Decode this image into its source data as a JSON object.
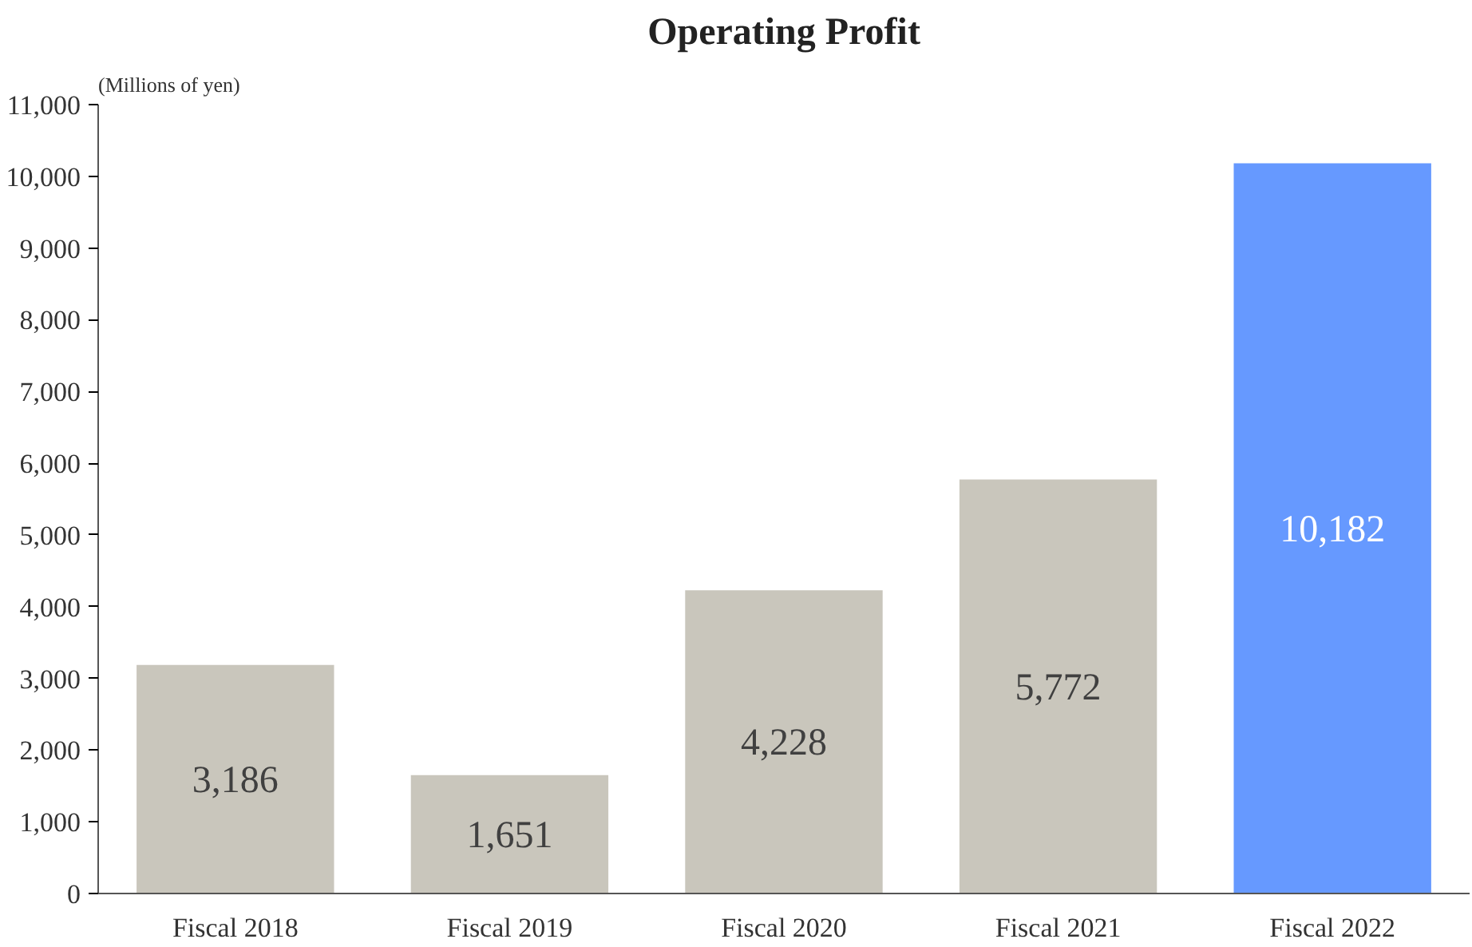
{
  "chart_data": {
    "type": "bar",
    "title": "Operating Profit",
    "ylabel": "(Millions of yen)",
    "categories": [
      "Fiscal 2018",
      "Fiscal 2019",
      "Fiscal 2020",
      "Fiscal 2021",
      "Fiscal 2022"
    ],
    "values": [
      3186,
      1651,
      4228,
      5772,
      10182
    ],
    "colors": [
      "#c9c6bc",
      "#c9c6bc",
      "#c9c6bc",
      "#c9c6bc",
      "#6699ff"
    ],
    "ylim": [
      0,
      11000
    ],
    "yticks": [
      {
        "value": 0,
        "label": "0"
      },
      {
        "value": 1000,
        "label": "1,000"
      },
      {
        "value": 2000,
        "label": "2,000"
      },
      {
        "value": 3000,
        "label": "3,000"
      },
      {
        "value": 4000,
        "label": "4,000"
      },
      {
        "value": 5000,
        "label": "5,000"
      },
      {
        "value": 6000,
        "label": "6,000"
      },
      {
        "value": 7000,
        "label": "7,000"
      },
      {
        "value": 8000,
        "label": "8,000"
      },
      {
        "value": 9000,
        "label": "9,000"
      },
      {
        "value": 10000,
        "label": "10,000"
      },
      {
        "value": 11000,
        "label": "11,000"
      }
    ],
    "value_labels": [
      "3,186",
      "1,651",
      "4,228",
      "5,772",
      "10,182"
    ],
    "grid": false
  }
}
